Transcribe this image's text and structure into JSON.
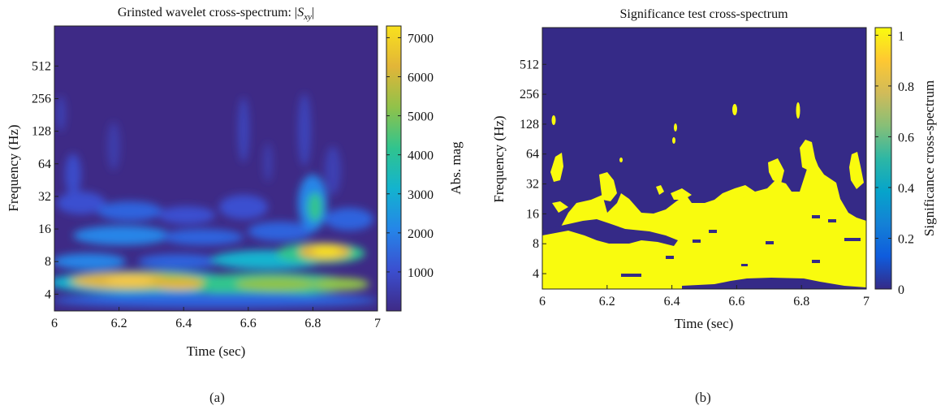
{
  "figure": {
    "captions": [
      "(a)",
      "(b)"
    ]
  },
  "chart_data": [
    {
      "type": "heatmap",
      "title_prefix": "Grinsted wavelet cross-spectrum: |",
      "title_math": "S",
      "title_sub": "xy",
      "title_suffix": "|",
      "xlabel": "Time (sec)",
      "ylabel": "Frequency (Hz)",
      "xlim": [
        6,
        7
      ],
      "x_ticks": [
        6,
        6.2,
        6.4,
        6.6,
        6.8,
        7
      ],
      "y_scale": "log2",
      "ylim": [
        2.8,
        1200
      ],
      "y_ticks": [
        4,
        8,
        16,
        32,
        64,
        128,
        256,
        512
      ],
      "colorbar": {
        "label": "Abs. mag",
        "range": [
          0,
          7300
        ],
        "ticks": [
          1000,
          2000,
          3000,
          4000,
          5000,
          6000,
          7000
        ]
      },
      "colormap": [
        "#3e2a86",
        "#3b4fd0",
        "#2585e8",
        "#13b3cf",
        "#30c48e",
        "#90c24a",
        "#e2b538",
        "#f9e11d"
      ],
      "features": [
        {
          "time": 6.25,
          "freq_hz": 5,
          "value": 6500
        },
        {
          "time": 6.5,
          "freq_hz": 5,
          "value": 4200
        },
        {
          "time": 6.85,
          "freq_hz": 10,
          "value": 6800
        },
        {
          "time": 6.9,
          "freq_hz": 6,
          "value": 4000
        },
        {
          "time": 6.8,
          "freq_hz": 24,
          "value": 3600
        },
        {
          "time": 6.05,
          "freq_hz": 50,
          "value": 1800
        }
      ]
    },
    {
      "type": "heatmap",
      "title": "Significance test cross-spectrum",
      "xlabel": "Time (sec)",
      "ylabel": "Frequency (Hz)",
      "xlim": [
        6,
        7
      ],
      "x_ticks": [
        6,
        6.2,
        6.4,
        6.6,
        6.8,
        7
      ],
      "y_scale": "log2",
      "ylim": [
        2.8,
        1200
      ],
      "y_ticks": [
        4,
        8,
        16,
        32,
        64,
        128,
        256,
        512
      ],
      "colorbar": {
        "label": "Significance cross-spectrum",
        "range": [
          0,
          1.03
        ],
        "ticks": [
          0,
          0.2,
          0.4,
          0.6,
          0.8,
          1
        ]
      },
      "colormap": [
        "#352a87",
        "#0f5cdd",
        "#1481d6",
        "#06a4ca",
        "#2eb7a4",
        "#87bf77",
        "#d1bb59",
        "#fec832",
        "#f9fb0e"
      ],
      "values": [
        0,
        1
      ],
      "significance_boundary": [
        [
          6.0,
          18
        ],
        [
          6.1,
          17
        ],
        [
          6.2,
          15
        ],
        [
          6.3,
          13
        ],
        [
          6.4,
          16
        ],
        [
          6.5,
          14
        ],
        [
          6.6,
          18
        ],
        [
          6.7,
          16
        ],
        [
          6.8,
          24
        ],
        [
          6.9,
          22
        ],
        [
          7.0,
          30
        ]
      ]
    }
  ]
}
